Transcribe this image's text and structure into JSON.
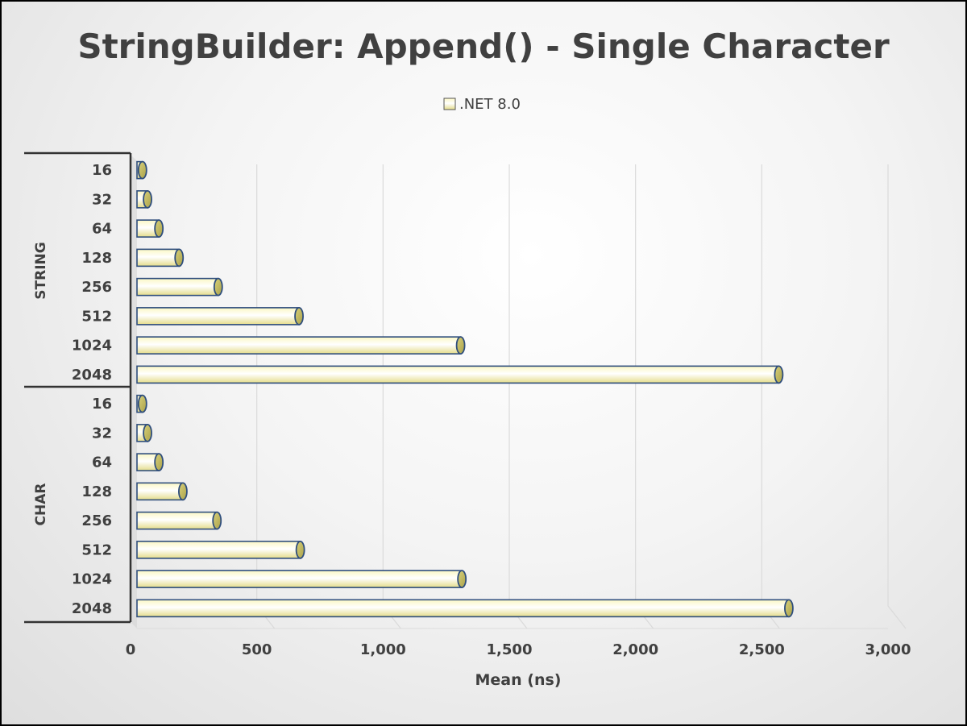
{
  "chart_data": {
    "type": "bar",
    "orientation": "horizontal",
    "title": "StringBuilder: Append()  - Single Character",
    "xlabel": "Mean (ns)",
    "ylabel": "",
    "xlim": [
      0,
      3000
    ],
    "x_ticks": [
      "0",
      "500",
      "1,000",
      "1,500",
      "2,000",
      "2,500",
      "3,000"
    ],
    "grid": true,
    "legend_position": "top",
    "groups": [
      {
        "name": "STRING",
        "categories": [
          "16",
          "32",
          "64",
          "128",
          "256",
          "512",
          "1024",
          "2048"
        ],
        "values": [
          60,
          80,
          125,
          205,
          360,
          680,
          1320,
          2580
        ]
      },
      {
        "name": "CHAR",
        "categories": [
          "16",
          "32",
          "64",
          "128",
          "256",
          "512",
          "1024",
          "2048"
        ],
        "values": [
          60,
          80,
          125,
          220,
          355,
          685,
          1325,
          2620
        ]
      }
    ],
    "series": [
      {
        "name": ".NET 8.0",
        "color": "#f3eea0"
      }
    ]
  }
}
